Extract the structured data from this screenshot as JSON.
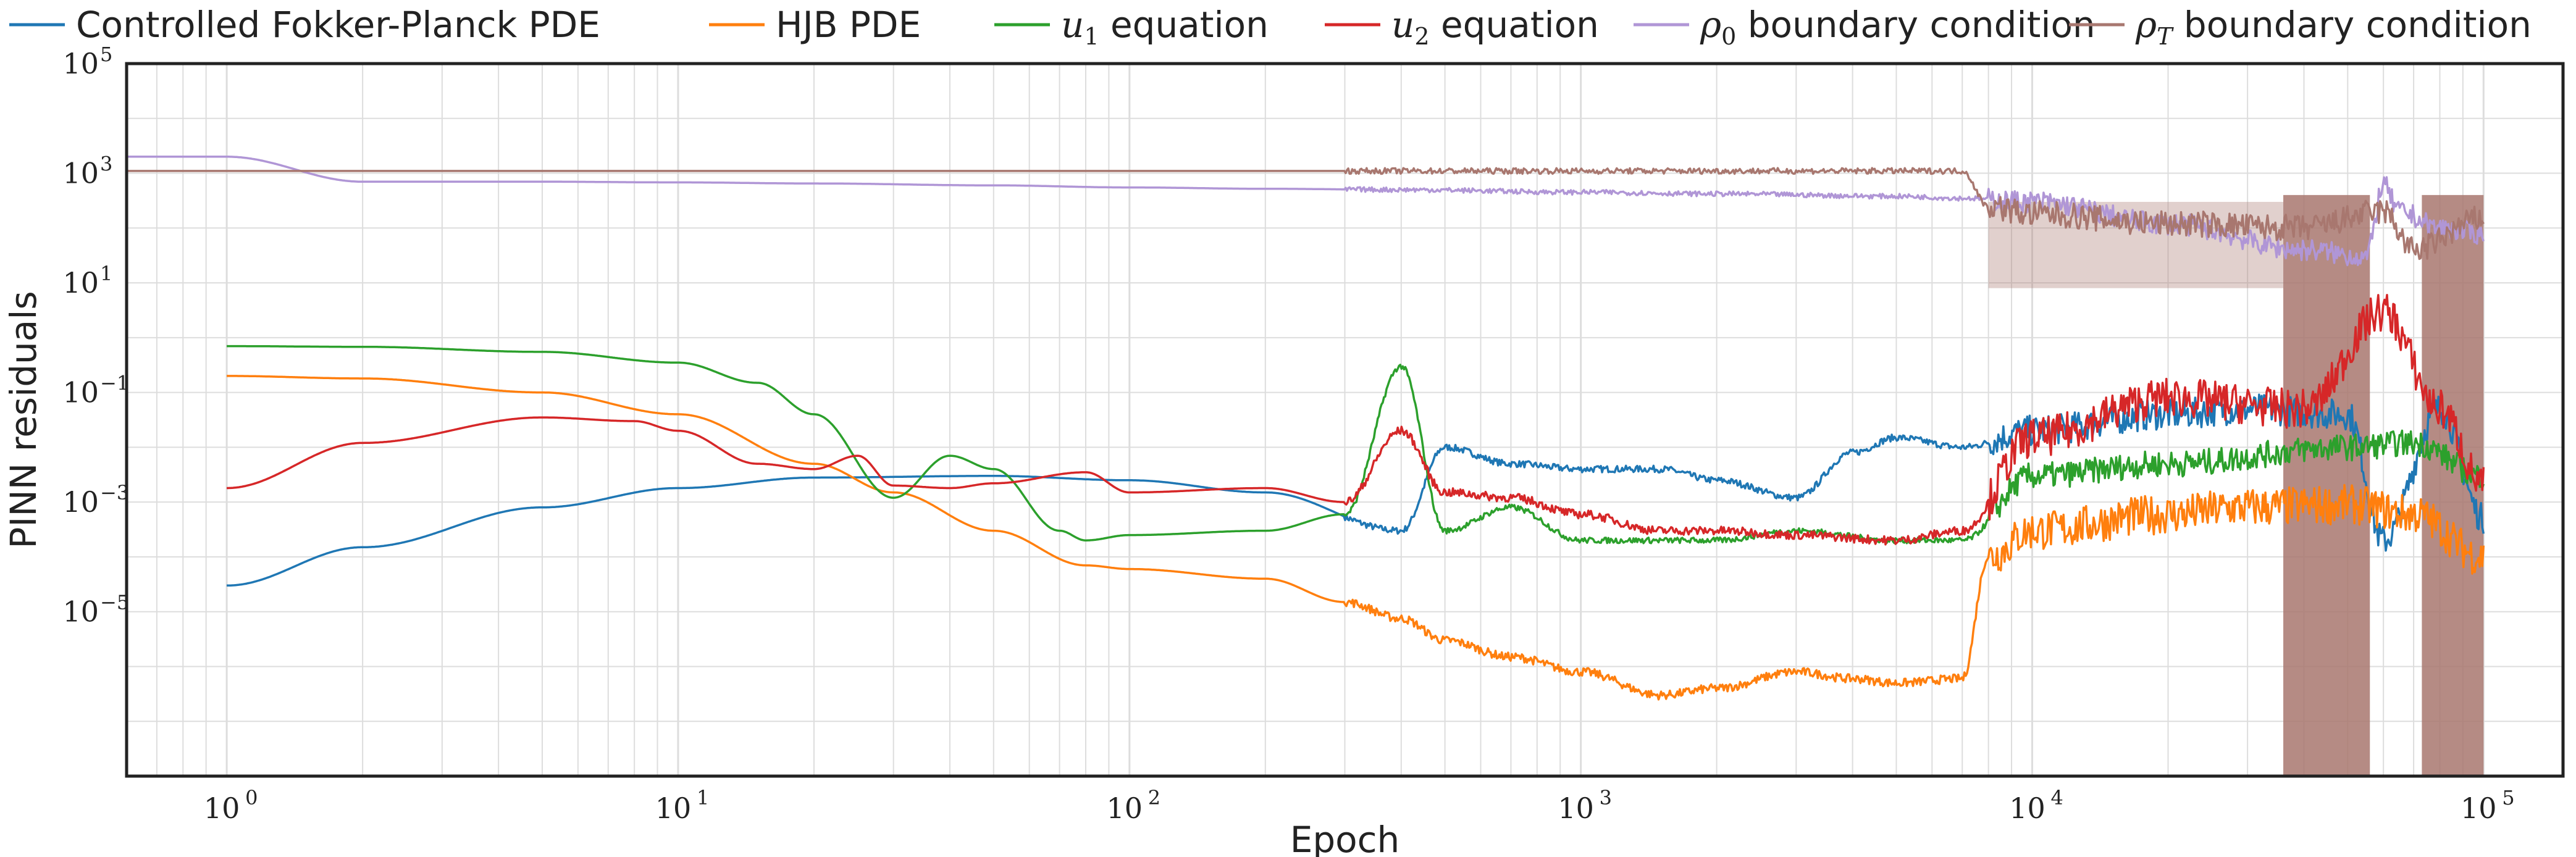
{
  "chart_data": {
    "type": "line",
    "xlabel": "Epoch",
    "ylabel": "PINN residuals",
    "x_scale": "log",
    "y_scale": "log",
    "xlim": [
      0.6,
      150000
    ],
    "ylim": [
      1e-08,
      100000
    ],
    "grid": true,
    "legend_position": "top",
    "x_ticks": [
      {
        "value": 1,
        "base": "10",
        "exp": "0"
      },
      {
        "value": 10,
        "base": "10",
        "exp": "1"
      },
      {
        "value": 100,
        "base": "10",
        "exp": "2"
      },
      {
        "value": 1000,
        "base": "10",
        "exp": "3"
      },
      {
        "value": 10000,
        "base": "10",
        "exp": "4"
      },
      {
        "value": 100000,
        "base": "10",
        "exp": "5"
      }
    ],
    "y_ticks": [
      {
        "value": 1e-05,
        "base": "10",
        "exp": "−5"
      },
      {
        "value": 0.001,
        "base": "10",
        "exp": "−3"
      },
      {
        "value": 0.1,
        "base": "10",
        "exp": "−1"
      },
      {
        "value": 10,
        "base": "10",
        "exp": "1"
      },
      {
        "value": 1000,
        "base": "10",
        "exp": "3"
      },
      {
        "value": 100000,
        "base": "10",
        "exp": "5"
      }
    ],
    "series": [
      {
        "name": "Controlled Fokker-Planck PDE",
        "color": "#1f77b4",
        "x": [
          1,
          2,
          5,
          10,
          20,
          50,
          100,
          200,
          400,
          500,
          700,
          1000,
          1500,
          2000,
          3000,
          4000,
          5000,
          7000,
          10000,
          20000,
          30000,
          50000,
          60000,
          80000,
          100000
        ],
        "y": [
          3e-05,
          0.00015,
          0.0008,
          0.0018,
          0.0028,
          0.003,
          0.0025,
          0.0015,
          0.0003,
          0.01,
          0.005,
          0.004,
          0.004,
          0.0025,
          0.0012,
          0.008,
          0.015,
          0.01,
          0.02,
          0.04,
          0.05,
          0.04,
          0.0002,
          0.05,
          0.0005
        ]
      },
      {
        "name": "HJB PDE",
        "color": "#ff7f0e",
        "x": [
          1,
          2,
          5,
          10,
          20,
          30,
          50,
          80,
          100,
          200,
          300,
          400,
          500,
          700,
          1000,
          1500,
          2000,
          3000,
          4000,
          5000,
          7000,
          8000,
          10000,
          20000,
          30000,
          50000,
          70000,
          100000
        ],
        "y": [
          0.2,
          0.18,
          0.1,
          0.04,
          0.005,
          0.0015,
          0.0003,
          7e-05,
          6e-05,
          4e-05,
          1.5e-05,
          7.5e-06,
          3e-06,
          1.5e-06,
          8e-07,
          3e-07,
          4e-07,
          8e-07,
          6e-07,
          5e-07,
          6e-07,
          0.0001,
          0.0003,
          0.0006,
          0.0008,
          0.0009,
          0.0006,
          0.0001
        ]
      },
      {
        "name": "$u_1$ equation",
        "color": "#2ca02c",
        "x": [
          1,
          2,
          5,
          10,
          15,
          20,
          30,
          40,
          50,
          70,
          80,
          100,
          200,
          300,
          400,
          500,
          700,
          1000,
          1500,
          2000,
          3000,
          5000,
          7000,
          10000,
          20000,
          50000,
          70000,
          100000
        ],
        "y": [
          0.7,
          0.68,
          0.55,
          0.35,
          0.15,
          0.04,
          0.0012,
          0.007,
          0.004,
          0.0003,
          0.0002,
          0.00025,
          0.0003,
          0.0006,
          0.3,
          0.0003,
          0.0008,
          0.0002,
          0.0002,
          0.0002,
          0.0003,
          0.0002,
          0.0002,
          0.003,
          0.005,
          0.01,
          0.012,
          0.003
        ]
      },
      {
        "name": "$u_2$ equation",
        "color": "#d62728",
        "x": [
          1,
          2,
          5,
          8,
          10,
          15,
          20,
          25,
          30,
          40,
          50,
          80,
          100,
          200,
          300,
          400,
          500,
          700,
          1000,
          1500,
          2000,
          3000,
          5000,
          7000,
          10000,
          20000,
          40000,
          60000,
          80000,
          100000
        ],
        "y": [
          0.0018,
          0.012,
          0.035,
          0.03,
          0.02,
          0.005,
          0.004,
          0.007,
          0.002,
          0.0018,
          0.0022,
          0.0035,
          0.0015,
          0.0018,
          0.001,
          0.02,
          0.0015,
          0.0012,
          0.0006,
          0.0003,
          0.0003,
          0.00025,
          0.0002,
          0.0003,
          0.015,
          0.08,
          0.05,
          3,
          0.05,
          0.002
        ]
      },
      {
        "name": "$\\rho_0$ boundary condition",
        "color": "#b096d6",
        "x": [
          0.6,
          1,
          2,
          5,
          10,
          20,
          50,
          100,
          200,
          400,
          1000,
          2000,
          5000,
          7000,
          10000,
          20000,
          40000,
          55000,
          60000,
          65000,
          80000,
          100000
        ],
        "y": [
          2000,
          2000,
          700,
          700,
          680,
          650,
          600,
          550,
          520,
          500,
          450,
          420,
          380,
          350,
          300,
          120,
          40,
          30,
          600,
          200,
          100,
          80
        ]
      },
      {
        "name": "$\\rho_T$ boundary condition",
        "color": "#a8776f",
        "x": [
          0.6,
          1,
          10,
          100,
          400,
          1000,
          3000,
          7000,
          8000,
          10000,
          20000,
          40000,
          60000,
          70000,
          100000
        ],
        "y": [
          1100,
          1100,
          1100,
          1100,
          1100,
          1100,
          1100,
          1100,
          250,
          180,
          120,
          100,
          200,
          40,
          150
        ]
      }
    ]
  }
}
